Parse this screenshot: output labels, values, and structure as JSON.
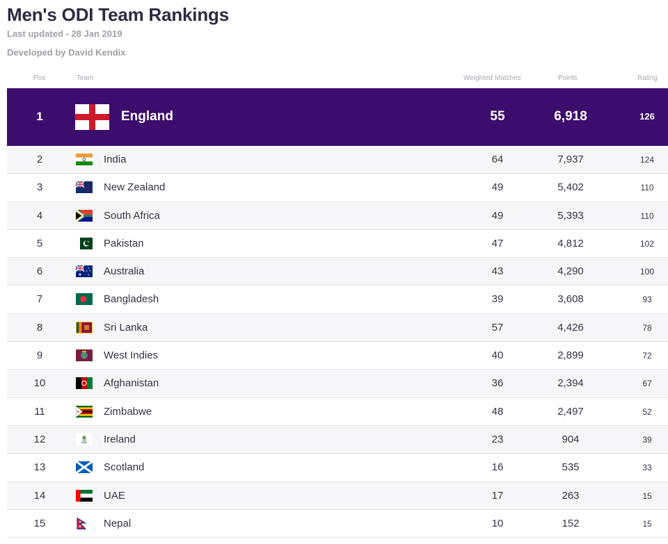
{
  "header": {
    "title": "Men's ODI Team Rankings",
    "updated": "Last updated - 28 Jan 2019",
    "developer": "Developed by David Kendix"
  },
  "columns": {
    "pos": "Pos",
    "team": "Team",
    "weighted_matches": "Weighted Matches",
    "points": "Points",
    "rating": "Rating"
  },
  "top": {
    "pos": "1",
    "team": "England",
    "flag": "england-flag-icon",
    "matches": "55",
    "points": "6,918",
    "rating": "126"
  },
  "rows": [
    {
      "pos": "2",
      "team": "India",
      "flag": "india-flag-icon",
      "matches": "64",
      "points": "7,937",
      "rating": "124"
    },
    {
      "pos": "3",
      "team": "New Zealand",
      "flag": "new-zealand-flag-icon",
      "matches": "49",
      "points": "5,402",
      "rating": "110"
    },
    {
      "pos": "4",
      "team": "South Africa",
      "flag": "south-africa-flag-icon",
      "matches": "49",
      "points": "5,393",
      "rating": "110"
    },
    {
      "pos": "5",
      "team": "Pakistan",
      "flag": "pakistan-flag-icon",
      "matches": "47",
      "points": "4,812",
      "rating": "102"
    },
    {
      "pos": "6",
      "team": "Australia",
      "flag": "australia-flag-icon",
      "matches": "43",
      "points": "4,290",
      "rating": "100"
    },
    {
      "pos": "7",
      "team": "Bangladesh",
      "flag": "bangladesh-flag-icon",
      "matches": "39",
      "points": "3,608",
      "rating": "93"
    },
    {
      "pos": "8",
      "team": "Sri Lanka",
      "flag": "sri-lanka-flag-icon",
      "matches": "57",
      "points": "4,426",
      "rating": "78"
    },
    {
      "pos": "9",
      "team": "West Indies",
      "flag": "west-indies-flag-icon",
      "matches": "40",
      "points": "2,899",
      "rating": "72"
    },
    {
      "pos": "10",
      "team": "Afghanistan",
      "flag": "afghanistan-flag-icon",
      "matches": "36",
      "points": "2,394",
      "rating": "67"
    },
    {
      "pos": "11",
      "team": "Zimbabwe",
      "flag": "zimbabwe-flag-icon",
      "matches": "48",
      "points": "2,497",
      "rating": "52"
    },
    {
      "pos": "12",
      "team": "Ireland",
      "flag": "ireland-flag-icon",
      "matches": "23",
      "points": "904",
      "rating": "39"
    },
    {
      "pos": "13",
      "team": "Scotland",
      "flag": "scotland-flag-icon",
      "matches": "16",
      "points": "535",
      "rating": "33"
    },
    {
      "pos": "14",
      "team": "UAE",
      "flag": "uae-flag-icon",
      "matches": "17",
      "points": "263",
      "rating": "15"
    },
    {
      "pos": "15",
      "team": "Nepal",
      "flag": "nepal-flag-icon",
      "matches": "10",
      "points": "152",
      "rating": "15"
    }
  ],
  "colors": {
    "top_row_bg": "#3d0d6e",
    "england_red": "#cc1a2b",
    "muted_text": "#a0a0a8"
  }
}
